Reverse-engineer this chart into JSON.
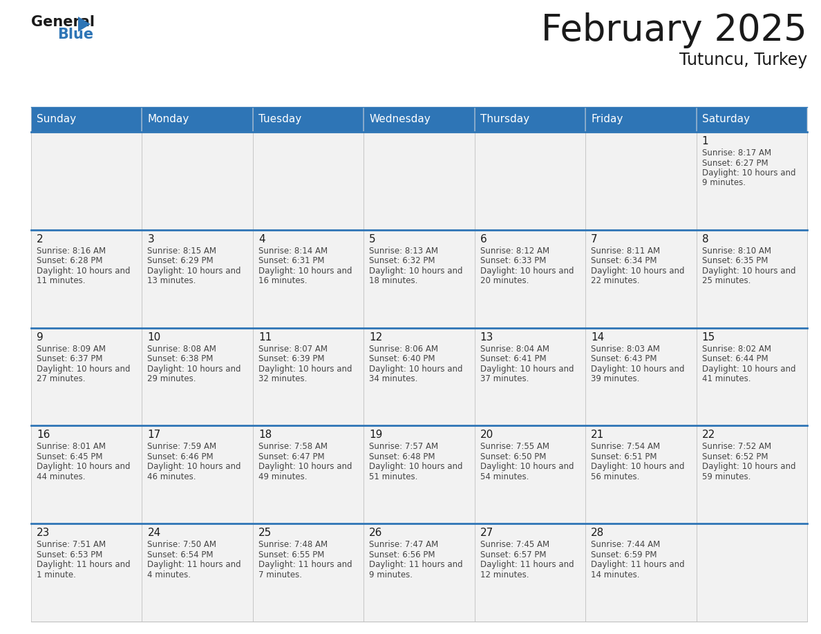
{
  "title": "February 2025",
  "subtitle": "Tutuncu, Turkey",
  "header_bg": "#2E75B6",
  "header_text_color": "#FFFFFF",
  "cell_bg": "#F2F2F2",
  "day_headers": [
    "Sunday",
    "Monday",
    "Tuesday",
    "Wednesday",
    "Thursday",
    "Friday",
    "Saturday"
  ],
  "separator_color": "#2E75B6",
  "title_color": "#1a1a1a",
  "subtitle_color": "#1a1a1a",
  "day_num_color": "#1a1a1a",
  "info_color": "#444444",
  "grid_color": "#C0C0C0",
  "calendar_data": {
    "1": {
      "sunrise": "8:17 AM",
      "sunset": "6:27 PM",
      "daylight": "10 hours and 9 minutes"
    },
    "2": {
      "sunrise": "8:16 AM",
      "sunset": "6:28 PM",
      "daylight": "10 hours and 11 minutes"
    },
    "3": {
      "sunrise": "8:15 AM",
      "sunset": "6:29 PM",
      "daylight": "10 hours and 13 minutes"
    },
    "4": {
      "sunrise": "8:14 AM",
      "sunset": "6:31 PM",
      "daylight": "10 hours and 16 minutes"
    },
    "5": {
      "sunrise": "8:13 AM",
      "sunset": "6:32 PM",
      "daylight": "10 hours and 18 minutes"
    },
    "6": {
      "sunrise": "8:12 AM",
      "sunset": "6:33 PM",
      "daylight": "10 hours and 20 minutes"
    },
    "7": {
      "sunrise": "8:11 AM",
      "sunset": "6:34 PM",
      "daylight": "10 hours and 22 minutes"
    },
    "8": {
      "sunrise": "8:10 AM",
      "sunset": "6:35 PM",
      "daylight": "10 hours and 25 minutes"
    },
    "9": {
      "sunrise": "8:09 AM",
      "sunset": "6:37 PM",
      "daylight": "10 hours and 27 minutes"
    },
    "10": {
      "sunrise": "8:08 AM",
      "sunset": "6:38 PM",
      "daylight": "10 hours and 29 minutes"
    },
    "11": {
      "sunrise": "8:07 AM",
      "sunset": "6:39 PM",
      "daylight": "10 hours and 32 minutes"
    },
    "12": {
      "sunrise": "8:06 AM",
      "sunset": "6:40 PM",
      "daylight": "10 hours and 34 minutes"
    },
    "13": {
      "sunrise": "8:04 AM",
      "sunset": "6:41 PM",
      "daylight": "10 hours and 37 minutes"
    },
    "14": {
      "sunrise": "8:03 AM",
      "sunset": "6:43 PM",
      "daylight": "10 hours and 39 minutes"
    },
    "15": {
      "sunrise": "8:02 AM",
      "sunset": "6:44 PM",
      "daylight": "10 hours and 41 minutes"
    },
    "16": {
      "sunrise": "8:01 AM",
      "sunset": "6:45 PM",
      "daylight": "10 hours and 44 minutes"
    },
    "17": {
      "sunrise": "7:59 AM",
      "sunset": "6:46 PM",
      "daylight": "10 hours and 46 minutes"
    },
    "18": {
      "sunrise": "7:58 AM",
      "sunset": "6:47 PM",
      "daylight": "10 hours and 49 minutes"
    },
    "19": {
      "sunrise": "7:57 AM",
      "sunset": "6:48 PM",
      "daylight": "10 hours and 51 minutes"
    },
    "20": {
      "sunrise": "7:55 AM",
      "sunset": "6:50 PM",
      "daylight": "10 hours and 54 minutes"
    },
    "21": {
      "sunrise": "7:54 AM",
      "sunset": "6:51 PM",
      "daylight": "10 hours and 56 minutes"
    },
    "22": {
      "sunrise": "7:52 AM",
      "sunset": "6:52 PM",
      "daylight": "10 hours and 59 minutes"
    },
    "23": {
      "sunrise": "7:51 AM",
      "sunset": "6:53 PM",
      "daylight": "11 hours and 1 minute"
    },
    "24": {
      "sunrise": "7:50 AM",
      "sunset": "6:54 PM",
      "daylight": "11 hours and 4 minutes"
    },
    "25": {
      "sunrise": "7:48 AM",
      "sunset": "6:55 PM",
      "daylight": "11 hours and 7 minutes"
    },
    "26": {
      "sunrise": "7:47 AM",
      "sunset": "6:56 PM",
      "daylight": "11 hours and 9 minutes"
    },
    "27": {
      "sunrise": "7:45 AM",
      "sunset": "6:57 PM",
      "daylight": "11 hours and 12 minutes"
    },
    "28": {
      "sunrise": "7:44 AM",
      "sunset": "6:59 PM",
      "daylight": "11 hours and 14 minutes"
    }
  },
  "first_weekday": 6,
  "num_days": 28,
  "num_weeks": 5
}
